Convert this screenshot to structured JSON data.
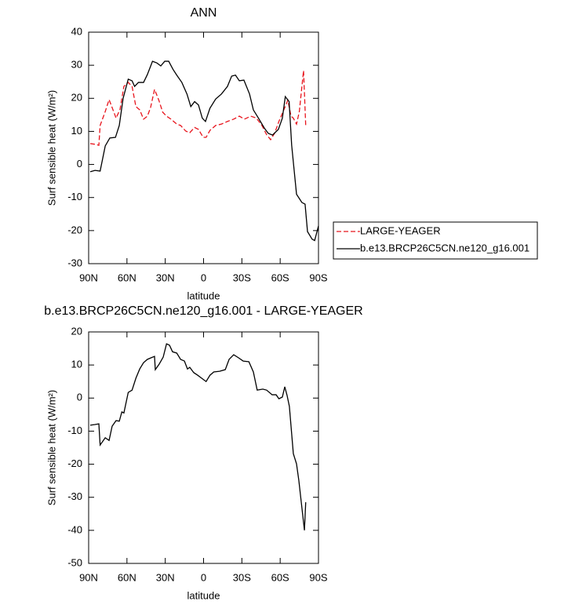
{
  "chart_data": [
    {
      "type": "line",
      "title": "ANN",
      "xlabel": "latitude",
      "ylabel": "Surf sensible heat (W/m²)",
      "xlim": [
        90,
        -90
      ],
      "ylim": [
        -30,
        40
      ],
      "xticks": [
        {
          "value": 90,
          "label": "90N"
        },
        {
          "value": 60,
          "label": "60N"
        },
        {
          "value": 30,
          "label": "30N"
        },
        0,
        {
          "value": -30,
          "label": "30S"
        },
        {
          "value": -60,
          "label": "60S"
        },
        {
          "value": -90,
          "label": "90S"
        }
      ],
      "yticks": [
        -30,
        -20,
        -10,
        0,
        10,
        20,
        30,
        40
      ],
      "legend": "right",
      "series": [
        {
          "name": "LARGE-YEAGER",
          "color": "#e8141c",
          "line_style": "dashed",
          "x": [
            88.8,
            85,
            82,
            81,
            77,
            74,
            71.6,
            68.5,
            65.4,
            62.4,
            59,
            56,
            53,
            50,
            47,
            44,
            41.5,
            38.4,
            35,
            32,
            29,
            25.5,
            21,
            18,
            14,
            10.8,
            7,
            4,
            0.3,
            -2,
            -5,
            -9.5,
            -14,
            -18.7,
            -23.6,
            -28,
            -32,
            -37,
            -41.4,
            -45.7,
            -49.4,
            -52.5,
            -55.6,
            -59,
            -62.3,
            -66,
            -68.5,
            -70.3,
            -72.8,
            -75,
            -78.3,
            -80
          ],
          "values": [
            6.3,
            6.1,
            5.8,
            11.8,
            16,
            19.6,
            17.2,
            14,
            16.7,
            23.6,
            24.8,
            23.6,
            17.5,
            16.5,
            13.7,
            14.6,
            17.2,
            22.7,
            19.4,
            15.8,
            14.6,
            13.7,
            12.2,
            11.8,
            10.1,
            9.6,
            11.2,
            10.6,
            8.2,
            8.2,
            10.3,
            11.8,
            12.2,
            13,
            13.7,
            14.6,
            13.7,
            14.6,
            14,
            11.8,
            9,
            7.5,
            9.4,
            13,
            16,
            19.4,
            14.6,
            14,
            12.2,
            16,
            28.4,
            11.8
          ]
        },
        {
          "name": "b.e13.BRCP26C5CN.ne120_g16.001",
          "color": "#000000",
          "line_style": "solid",
          "x": [
            88.8,
            85,
            81,
            77,
            73.4,
            69,
            66,
            63,
            59,
            56,
            54,
            51,
            47,
            44,
            40,
            36.6,
            33.5,
            30.4,
            27.3,
            24,
            21,
            17,
            13,
            10,
            7,
            4,
            1,
            -1.5,
            -5,
            -9.5,
            -14,
            -18.7,
            -22,
            -25,
            -28,
            -31.6,
            -36,
            -39,
            -43,
            -47.6,
            -50.7,
            -54,
            -58.6,
            -61.7,
            -64,
            -67,
            -69,
            -72.8,
            -77,
            -79.5,
            -81.4,
            -85,
            -87,
            -90
          ],
          "values": [
            -2.2,
            -1.8,
            -2,
            5.6,
            8,
            8.2,
            11.8,
            20,
            25.8,
            25.3,
            23.6,
            24.8,
            24.8,
            27.2,
            31.2,
            30.7,
            29.8,
            31.2,
            31.2,
            28.8,
            27,
            24.8,
            21.3,
            17.5,
            19,
            18,
            14,
            13,
            17,
            19.8,
            21.3,
            23.6,
            26.7,
            27,
            25.3,
            25.5,
            21.3,
            16.5,
            14,
            11,
            9.4,
            8.9,
            10.6,
            14,
            20.5,
            19,
            5.8,
            -9,
            -11.5,
            -12,
            -20.3,
            -22.6,
            -23,
            -18.6
          ]
        }
      ]
    },
    {
      "type": "line",
      "title": "b.e13.BRCP26C5CN.ne120_g16.001 - LARGE-YEAGER",
      "xlabel": "latitude",
      "ylabel": "Surf sensible heat (W/m²)",
      "xlim": [
        90,
        -90
      ],
      "ylim": [
        -50,
        20
      ],
      "xticks": [
        {
          "value": 90,
          "label": "90N"
        },
        {
          "value": 60,
          "label": "60N"
        },
        {
          "value": 30,
          "label": "30N"
        },
        0,
        {
          "value": -30,
          "label": "30S"
        },
        {
          "value": -60,
          "label": "60S"
        },
        {
          "value": -90,
          "label": "90S"
        }
      ],
      "yticks": [
        -50,
        -40,
        -30,
        -20,
        -10,
        0,
        10,
        20
      ],
      "series": [
        {
          "color": "#000000",
          "line_style": "solid",
          "x": [
            88.8,
            85,
            82,
            81,
            77,
            74,
            71.6,
            68.5,
            66,
            64,
            62.4,
            59,
            56,
            53,
            50,
            47,
            44,
            41,
            38.4,
            37.8,
            34.7,
            31.6,
            29,
            26.7,
            24.3,
            21,
            18,
            15,
            12.6,
            10.8,
            7.7,
            4.6,
            1.5,
            -2,
            -5,
            -8,
            -12.6,
            -17,
            -20,
            -23.6,
            -27.3,
            -31,
            -35.5,
            -39,
            -42,
            -46.4,
            -49.4,
            -53.7,
            -56.8,
            -59,
            -61.7,
            -63.6,
            -65.4,
            -67.2,
            -70.3,
            -72.8,
            -74.6,
            -79,
            -80
          ],
          "values": [
            -8.2,
            -8,
            -7.8,
            -14.2,
            -12,
            -12.8,
            -8.5,
            -6.8,
            -7,
            -4.2,
            -4.5,
            1.7,
            2.4,
            6,
            8.8,
            10.7,
            11.7,
            12.2,
            12.6,
            8.6,
            10.3,
            12.4,
            16.4,
            16,
            14,
            13.6,
            11.7,
            11.2,
            8.8,
            9.3,
            7.7,
            6.9,
            6,
            5,
            6.9,
            7.9,
            8.1,
            8.6,
            11.7,
            13.1,
            12.2,
            11.2,
            11,
            7.9,
            2.4,
            2.7,
            2.4,
            1,
            1,
            -0.2,
            0.3,
            3.4,
            0.8,
            -2.5,
            -16.8,
            -19.9,
            -24.9,
            -40,
            -31.5
          ]
        }
      ]
    }
  ]
}
